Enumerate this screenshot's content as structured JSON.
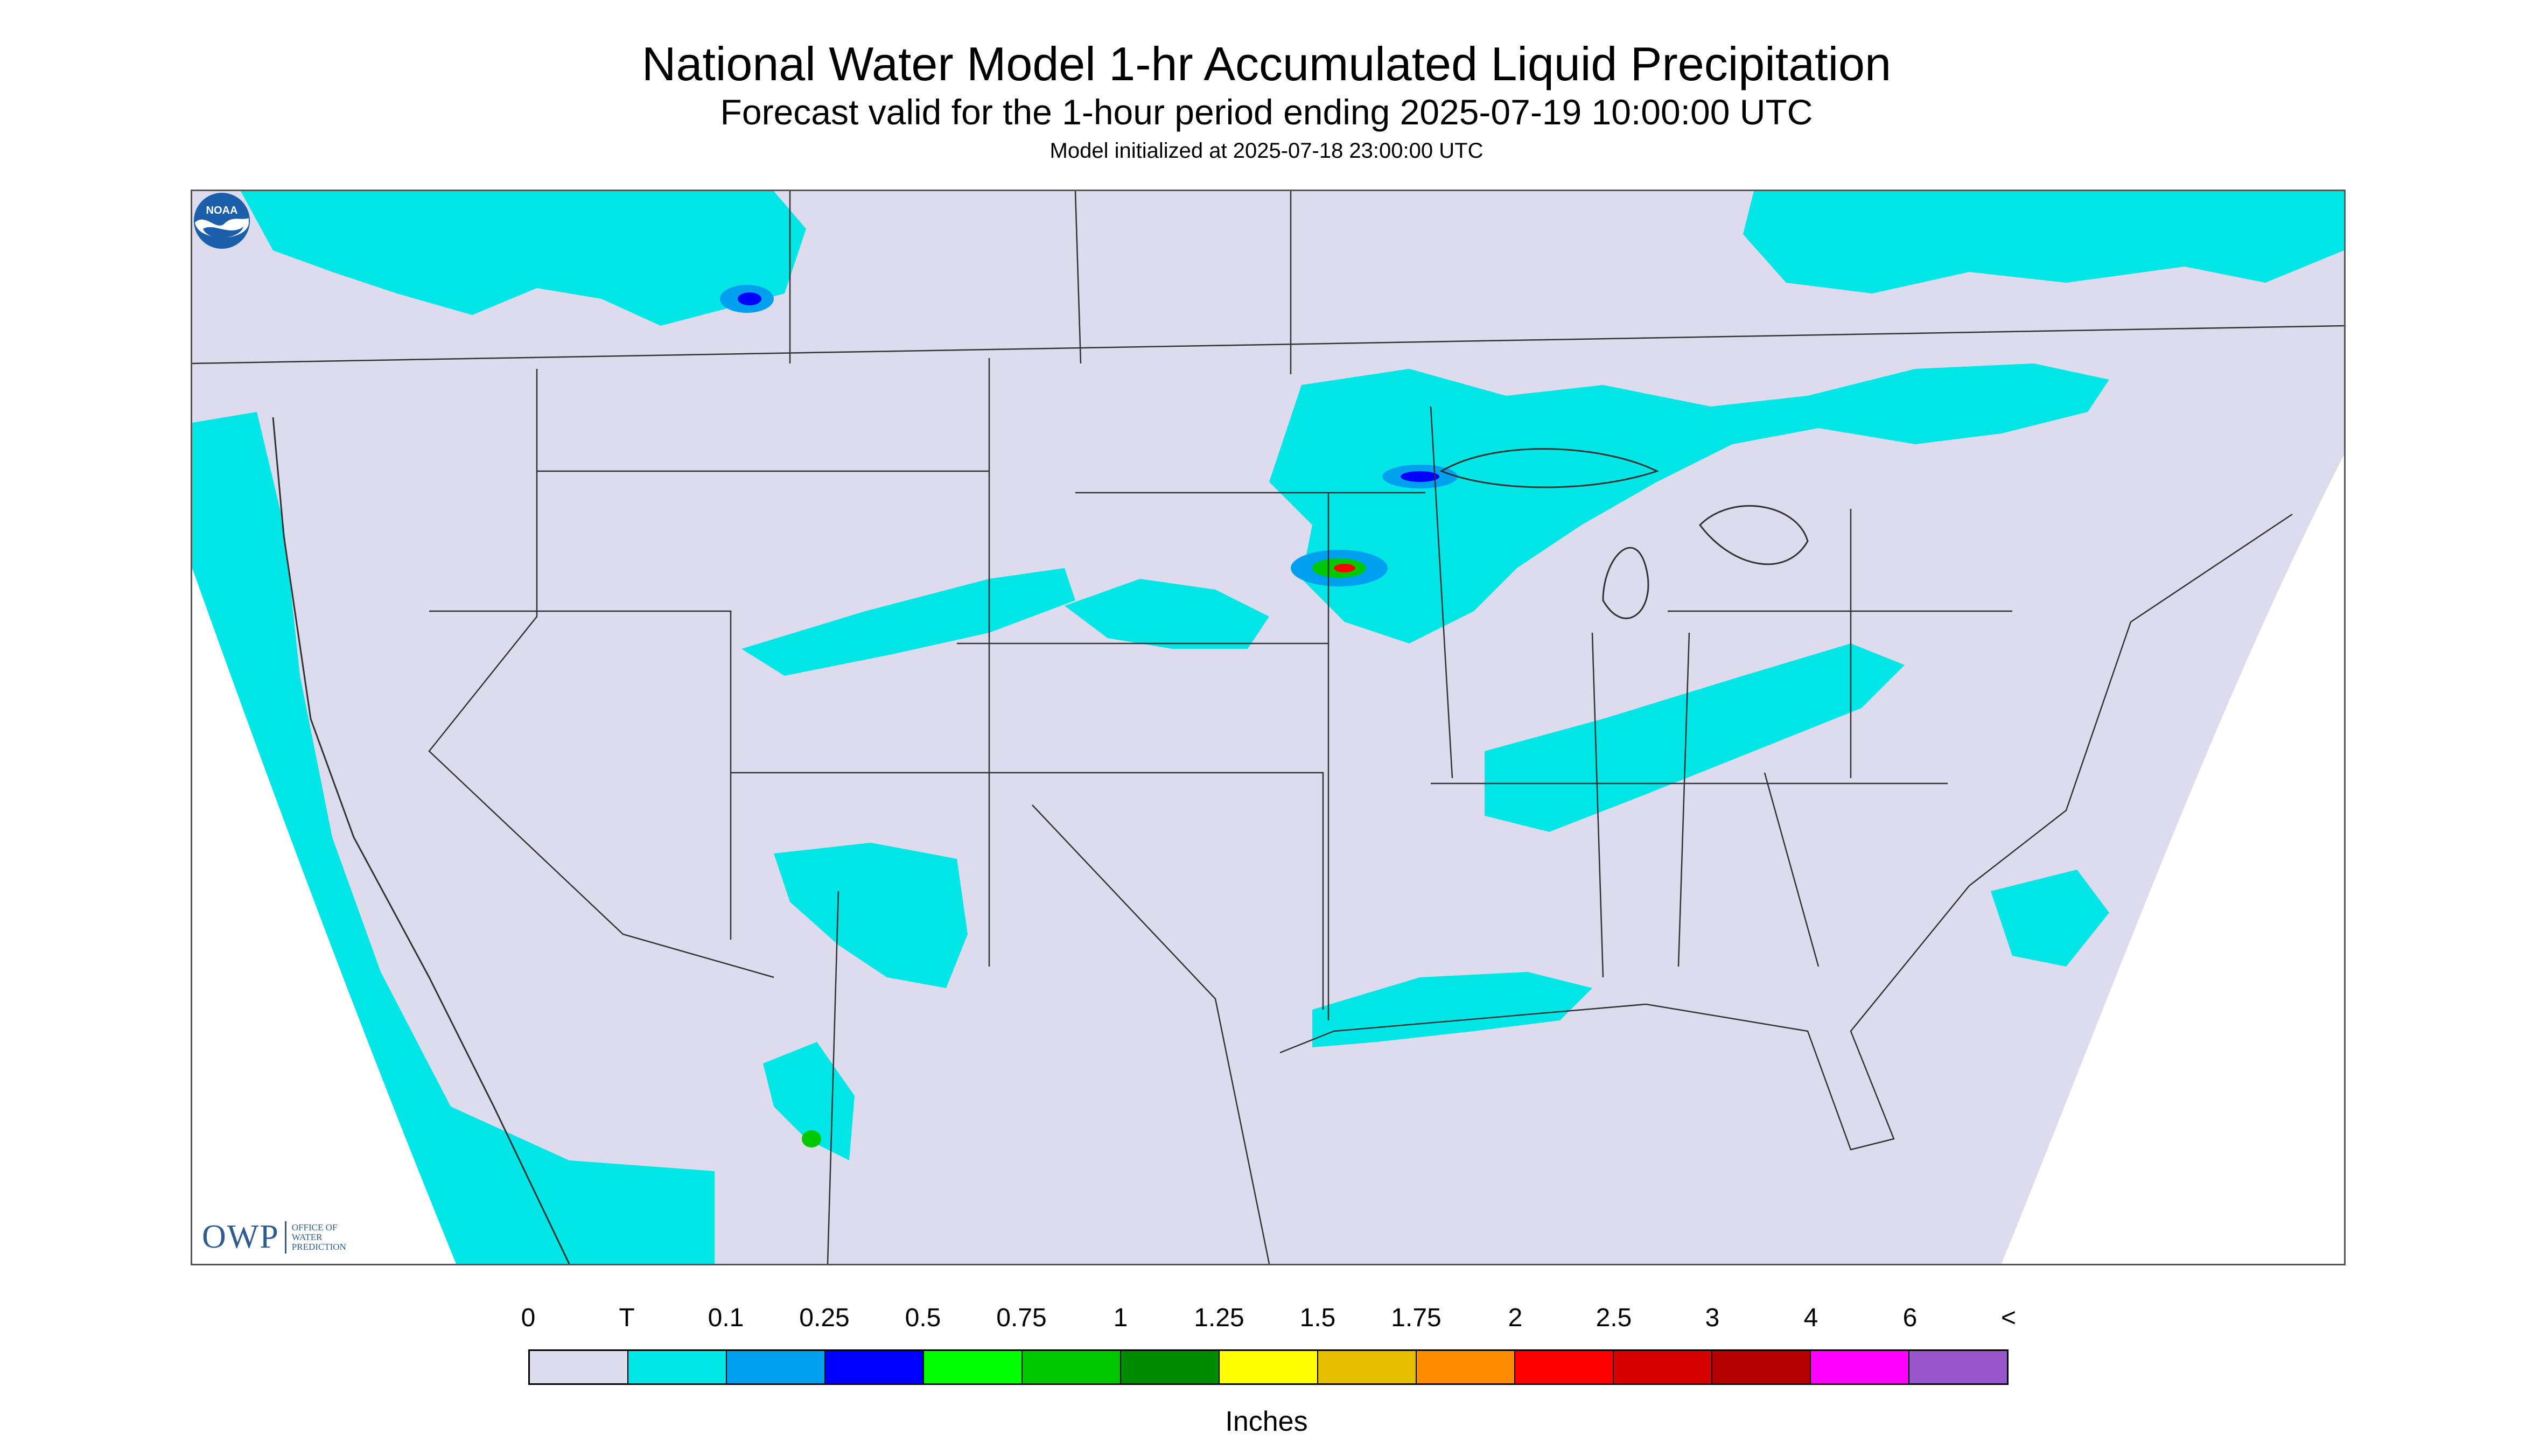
{
  "header": {
    "title": "National Water Model 1-hr Accumulated Liquid Precipitation",
    "subtitle": "Forecast valid for the 1-hour period ending 2025-07-19 10:00:00 UTC",
    "init": "Model initialized at 2025-07-18 23:00:00 UTC"
  },
  "logos": {
    "owp_mark": "OWP",
    "owp_text": "OFFICE OF WATER PREDICTION",
    "noaa_text": "NOAA"
  },
  "colors": {
    "map_background": "#dcdcee",
    "no_data": "#ffffff",
    "trace": "#00e5e5",
    "medium": "#0000ff",
    "state_lines": "#333333"
  },
  "legend": {
    "labels": [
      "0",
      "T",
      "0.1",
      "0.25",
      "0.5",
      "0.75",
      "1",
      "1.25",
      "1.5",
      "1.75",
      "2",
      "2.5",
      "3",
      "4",
      "6",
      "<"
    ],
    "colors": [
      "#dcdcee",
      "#00e5e5",
      "#00a0f0",
      "#0000ff",
      "#00ff00",
      "#00c800",
      "#008c00",
      "#ffff00",
      "#e6be00",
      "#ff8c00",
      "#ff0000",
      "#d70000",
      "#b40000",
      "#ff00ff",
      "#9955cc"
    ],
    "units": "Inches"
  }
}
